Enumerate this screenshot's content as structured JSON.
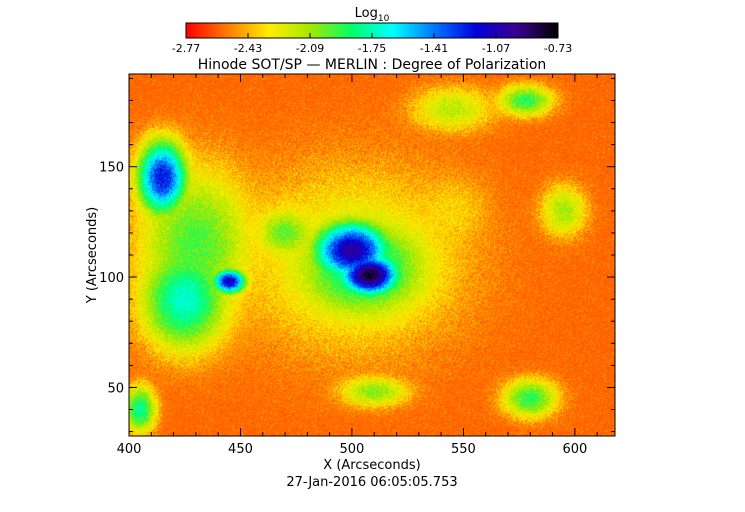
{
  "chart_data": {
    "type": "heatmap",
    "title": "Hinode SOT/SP — MERLIN : Degree of Polarization",
    "xlabel": "X (Arcseconds)",
    "ylabel": "Y (Arcseconds)",
    "xlim": [
      400,
      618
    ],
    "ylim": [
      28,
      192
    ],
    "xticks": [
      "400",
      "450",
      "500",
      "550",
      "600"
    ],
    "yticks": [
      "50",
      "100",
      "150"
    ],
    "colorbar": {
      "label_main": "Log",
      "label_sub": "10",
      "range": [
        -2.77,
        -0.73
      ],
      "ticks": [
        "-2.77",
        "-2.43",
        "-2.09",
        "-1.75",
        "-1.41",
        "-1.07",
        "-0.73"
      ],
      "colormap": [
        "#ff0000",
        "#ff7a00",
        "#ffee00",
        "#a6e800",
        "#00ff66",
        "#00ffff",
        "#0077ff",
        "#0000dd",
        "#3a0090",
        "#000000"
      ]
    },
    "background_level": -2.7,
    "features": [
      {
        "x": 508,
        "y": 101,
        "sx": 14,
        "sy": 10,
        "level": -0.78
      },
      {
        "x": 500,
        "y": 112,
        "sx": 18,
        "sy": 14,
        "level": -1.0
      },
      {
        "x": 505,
        "y": 104,
        "sx": 34,
        "sy": 26,
        "level": -1.75
      },
      {
        "x": 500,
        "y": 108,
        "sx": 60,
        "sy": 50,
        "level": -2.2
      },
      {
        "x": 415,
        "y": 145,
        "sx": 12,
        "sy": 18,
        "level": -1.2
      },
      {
        "x": 425,
        "y": 90,
        "sx": 22,
        "sy": 26,
        "level": -1.7
      },
      {
        "x": 445,
        "y": 98,
        "sx": 8,
        "sy": 6,
        "level": -1.1
      },
      {
        "x": 470,
        "y": 120,
        "sx": 16,
        "sy": 14,
        "level": -2.0
      },
      {
        "x": 430,
        "y": 115,
        "sx": 30,
        "sy": 40,
        "level": -1.95
      },
      {
        "x": 510,
        "y": 48,
        "sx": 18,
        "sy": 8,
        "level": -2.05
      },
      {
        "x": 405,
        "y": 40,
        "sx": 8,
        "sy": 12,
        "level": -1.8
      },
      {
        "x": 578,
        "y": 180,
        "sx": 14,
        "sy": 8,
        "level": -1.9
      },
      {
        "x": 580,
        "y": 45,
        "sx": 14,
        "sy": 10,
        "level": -1.9
      },
      {
        "x": 545,
        "y": 176,
        "sx": 22,
        "sy": 12,
        "level": -2.15
      },
      {
        "x": 595,
        "y": 130,
        "sx": 12,
        "sy": 14,
        "level": -2.1
      },
      {
        "x": 545,
        "y": 130,
        "sx": 20,
        "sy": 20,
        "level": -2.35
      }
    ]
  },
  "timestamp": "27-Jan-2016 06:05:05.753"
}
